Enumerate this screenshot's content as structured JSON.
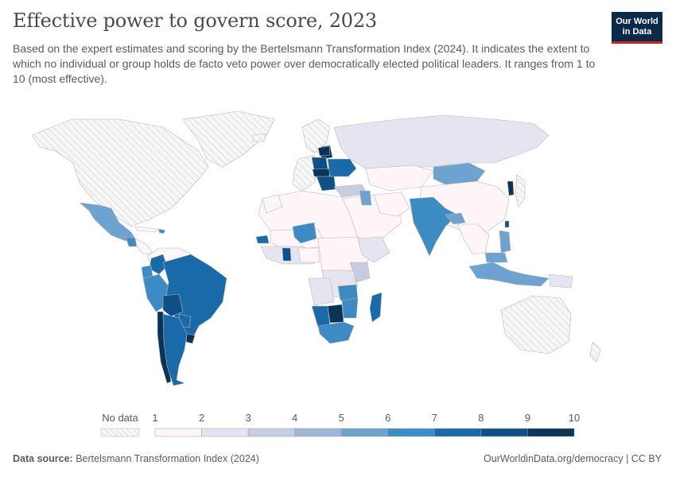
{
  "header": {
    "title": "Effective power to govern score, 2023",
    "subtitle": "Based on the expert estimates and scoring by the Bertelsmann Transformation Index (2024). It indicates the extent to which no individual or group holds de facto veto power over democratically elected political leaders. It ranges from 1 to 10 (most effective).",
    "logo_line1": "Our World",
    "logo_line2": "in Data"
  },
  "legend": {
    "no_data_label": "No data",
    "ticks": [
      "1",
      "2",
      "3",
      "4",
      "5",
      "6",
      "7",
      "8",
      "9",
      "10"
    ],
    "colors": [
      "#fdf5f8",
      "#e6e4f1",
      "#c6cde3",
      "#9eb6d8",
      "#6ea2cf",
      "#3c8bc3",
      "#1a6aaa",
      "#0e4f87",
      "#0a3457"
    ]
  },
  "footer": {
    "source_label": "Data source:",
    "source_text": "Bertelsmann Transformation Index (2024)",
    "url": "OurWorldinData.org/democracy",
    "license": "CC BY"
  },
  "colors": {
    "no_data_fill": "#f2f2f2",
    "hatch_stroke": "#d9d9d9",
    "country_stroke": "#b8b8b8"
  }
}
